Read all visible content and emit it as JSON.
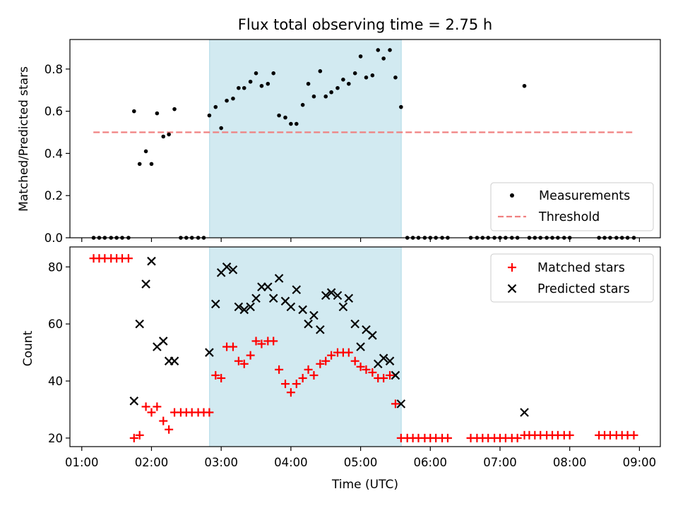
{
  "colors": {
    "measurement": "#000000",
    "threshold": "#f08080",
    "matched": "#ff0000",
    "predicted": "#000000",
    "shade": "#add8e6"
  },
  "chart_data": [
    {
      "type": "scatter",
      "title": "Flux total observing time = 2.75 h",
      "xlabel": "",
      "ylabel": "Matched/Predicted stars",
      "x_unit": "hours UTC",
      "xlim": [
        0.83,
        9.3
      ],
      "ylim": [
        0.0,
        0.94
      ],
      "yticks": [
        "0.0",
        "0.2",
        "0.4",
        "0.6",
        "0.8"
      ],
      "shaded_span": {
        "start": "02:50",
        "end": "05:35"
      },
      "threshold": {
        "name": "Threshold",
        "value": 0.5,
        "x_start": "01:10",
        "x_end": "08:55"
      },
      "legend_position": "lower right",
      "series": [
        {
          "name": "Measurements",
          "points": [
            [
              1.17,
              0
            ],
            [
              1.25,
              0
            ],
            [
              1.33,
              0
            ],
            [
              1.42,
              0
            ],
            [
              1.5,
              0
            ],
            [
              1.58,
              0
            ],
            [
              1.67,
              0
            ],
            [
              1.75,
              0.6
            ],
            [
              1.83,
              0.35
            ],
            [
              1.92,
              0.41
            ],
            [
              2.0,
              0.35
            ],
            [
              2.08,
              0.59
            ],
            [
              2.17,
              0.48
            ],
            [
              2.25,
              0.49
            ],
            [
              2.33,
              0.61
            ],
            [
              2.42,
              0
            ],
            [
              2.5,
              0
            ],
            [
              2.58,
              0
            ],
            [
              2.67,
              0
            ],
            [
              2.75,
              0
            ],
            [
              2.83,
              0.58
            ],
            [
              2.92,
              0.62
            ],
            [
              3.0,
              0.52
            ],
            [
              3.08,
              0.65
            ],
            [
              3.17,
              0.66
            ],
            [
              3.25,
              0.71
            ],
            [
              3.33,
              0.71
            ],
            [
              3.42,
              0.74
            ],
            [
              3.5,
              0.78
            ],
            [
              3.58,
              0.72
            ],
            [
              3.67,
              0.73
            ],
            [
              3.75,
              0.78
            ],
            [
              3.83,
              0.58
            ],
            [
              3.92,
              0.57
            ],
            [
              4.0,
              0.54
            ],
            [
              4.08,
              0.54
            ],
            [
              4.17,
              0.63
            ],
            [
              4.25,
              0.73
            ],
            [
              4.33,
              0.67
            ],
            [
              4.42,
              0.79
            ],
            [
              4.5,
              0.67
            ],
            [
              4.58,
              0.69
            ],
            [
              4.67,
              0.71
            ],
            [
              4.75,
              0.75
            ],
            [
              4.83,
              0.73
            ],
            [
              4.92,
              0.78
            ],
            [
              5.0,
              0.86
            ],
            [
              5.08,
              0.76
            ],
            [
              5.17,
              0.77
            ],
            [
              5.25,
              0.89
            ],
            [
              5.33,
              0.85
            ],
            [
              5.42,
              0.89
            ],
            [
              5.5,
              0.76
            ],
            [
              5.58,
              0.62
            ],
            [
              5.67,
              0
            ],
            [
              5.75,
              0
            ],
            [
              5.83,
              0
            ],
            [
              5.92,
              0
            ],
            [
              6.0,
              0
            ],
            [
              6.08,
              0
            ],
            [
              6.17,
              0
            ],
            [
              6.25,
              0
            ],
            [
              6.58,
              0
            ],
            [
              6.67,
              0
            ],
            [
              6.75,
              0
            ],
            [
              6.83,
              0
            ],
            [
              6.92,
              0
            ],
            [
              7.0,
              0
            ],
            [
              7.08,
              0
            ],
            [
              7.17,
              0
            ],
            [
              7.25,
              0
            ],
            [
              7.35,
              0.72
            ],
            [
              7.42,
              0
            ],
            [
              7.5,
              0
            ],
            [
              7.58,
              0
            ],
            [
              7.67,
              0
            ],
            [
              7.75,
              0
            ],
            [
              7.83,
              0
            ],
            [
              7.92,
              0
            ],
            [
              8.0,
              0
            ],
            [
              8.42,
              0
            ],
            [
              8.5,
              0
            ],
            [
              8.58,
              0
            ],
            [
              8.67,
              0
            ],
            [
              8.75,
              0
            ],
            [
              8.83,
              0
            ],
            [
              8.92,
              0
            ]
          ]
        }
      ]
    },
    {
      "type": "scatter",
      "xlabel": "Time (UTC)",
      "ylabel": "Count",
      "x_unit": "hours UTC",
      "xlim": [
        0.83,
        9.3
      ],
      "ylim": [
        17,
        87
      ],
      "yticks": [
        "20",
        "40",
        "60",
        "80"
      ],
      "xticks": [
        "01:00",
        "02:00",
        "03:00",
        "04:00",
        "05:00",
        "06:00",
        "07:00",
        "08:00",
        "09:00"
      ],
      "shaded_span": {
        "start": "02:50",
        "end": "05:35"
      },
      "legend_position": "upper right",
      "series": [
        {
          "name": "Matched stars",
          "marker": "plus",
          "points": [
            [
              1.17,
              83
            ],
            [
              1.25,
              83
            ],
            [
              1.33,
              83
            ],
            [
              1.42,
              83
            ],
            [
              1.5,
              83
            ],
            [
              1.58,
              83
            ],
            [
              1.67,
              83
            ],
            [
              1.75,
              20
            ],
            [
              1.83,
              21
            ],
            [
              1.92,
              31
            ],
            [
              2.0,
              29
            ],
            [
              2.08,
              31
            ],
            [
              2.17,
              26
            ],
            [
              2.25,
              23
            ],
            [
              2.33,
              29
            ],
            [
              2.42,
              29
            ],
            [
              2.5,
              29
            ],
            [
              2.58,
              29
            ],
            [
              2.67,
              29
            ],
            [
              2.75,
              29
            ],
            [
              2.83,
              29
            ],
            [
              2.92,
              42
            ],
            [
              3.0,
              41
            ],
            [
              3.08,
              52
            ],
            [
              3.17,
              52
            ],
            [
              3.25,
              47
            ],
            [
              3.33,
              46
            ],
            [
              3.42,
              49
            ],
            [
              3.5,
              54
            ],
            [
              3.58,
              53
            ],
            [
              3.67,
              54
            ],
            [
              3.75,
              54
            ],
            [
              3.83,
              44
            ],
            [
              3.92,
              39
            ],
            [
              4.0,
              36
            ],
            [
              4.08,
              39
            ],
            [
              4.17,
              41
            ],
            [
              4.25,
              44
            ],
            [
              4.33,
              42
            ],
            [
              4.42,
              46
            ],
            [
              4.5,
              47
            ],
            [
              4.58,
              49
            ],
            [
              4.67,
              50
            ],
            [
              4.75,
              50
            ],
            [
              4.83,
              50
            ],
            [
              4.92,
              47
            ],
            [
              5.0,
              45
            ],
            [
              5.08,
              44
            ],
            [
              5.17,
              43
            ],
            [
              5.25,
              41
            ],
            [
              5.33,
              41
            ],
            [
              5.42,
              42
            ],
            [
              5.5,
              32
            ],
            [
              5.58,
              20
            ],
            [
              5.67,
              20
            ],
            [
              5.75,
              20
            ],
            [
              5.83,
              20
            ],
            [
              5.92,
              20
            ],
            [
              6.0,
              20
            ],
            [
              6.08,
              20
            ],
            [
              6.17,
              20
            ],
            [
              6.25,
              20
            ],
            [
              6.58,
              20
            ],
            [
              6.67,
              20
            ],
            [
              6.75,
              20
            ],
            [
              6.83,
              20
            ],
            [
              6.92,
              20
            ],
            [
              7.0,
              20
            ],
            [
              7.08,
              20
            ],
            [
              7.17,
              20
            ],
            [
              7.25,
              20
            ],
            [
              7.35,
              21
            ],
            [
              7.42,
              21
            ],
            [
              7.5,
              21
            ],
            [
              7.58,
              21
            ],
            [
              7.67,
              21
            ],
            [
              7.75,
              21
            ],
            [
              7.83,
              21
            ],
            [
              7.92,
              21
            ],
            [
              8.0,
              21
            ],
            [
              8.42,
              21
            ],
            [
              8.5,
              21
            ],
            [
              8.58,
              21
            ],
            [
              8.67,
              21
            ],
            [
              8.75,
              21
            ],
            [
              8.83,
              21
            ],
            [
              8.92,
              21
            ]
          ]
        },
        {
          "name": "Predicted stars",
          "marker": "x",
          "points": [
            [
              1.75,
              33
            ],
            [
              1.83,
              60
            ],
            [
              1.92,
              74
            ],
            [
              2.0,
              82
            ],
            [
              2.08,
              52
            ],
            [
              2.17,
              54
            ],
            [
              2.25,
              47
            ],
            [
              2.33,
              47
            ],
            [
              2.83,
              50
            ],
            [
              2.92,
              67
            ],
            [
              3.0,
              78
            ],
            [
              3.08,
              80
            ],
            [
              3.17,
              79
            ],
            [
              3.25,
              66
            ],
            [
              3.33,
              65
            ],
            [
              3.42,
              66
            ],
            [
              3.5,
              69
            ],
            [
              3.58,
              73
            ],
            [
              3.67,
              73
            ],
            [
              3.75,
              69
            ],
            [
              3.83,
              76
            ],
            [
              3.92,
              68
            ],
            [
              4.0,
              66
            ],
            [
              4.08,
              72
            ],
            [
              4.17,
              65
            ],
            [
              4.25,
              60
            ],
            [
              4.33,
              63
            ],
            [
              4.42,
              58
            ],
            [
              4.5,
              70
            ],
            [
              4.58,
              71
            ],
            [
              4.67,
              70
            ],
            [
              4.75,
              66
            ],
            [
              4.83,
              69
            ],
            [
              4.92,
              60
            ],
            [
              5.0,
              52
            ],
            [
              5.08,
              58
            ],
            [
              5.17,
              56
            ],
            [
              5.25,
              46
            ],
            [
              5.33,
              48
            ],
            [
              5.42,
              47
            ],
            [
              5.5,
              42
            ],
            [
              5.58,
              32
            ],
            [
              7.35,
              29
            ]
          ]
        }
      ]
    }
  ]
}
